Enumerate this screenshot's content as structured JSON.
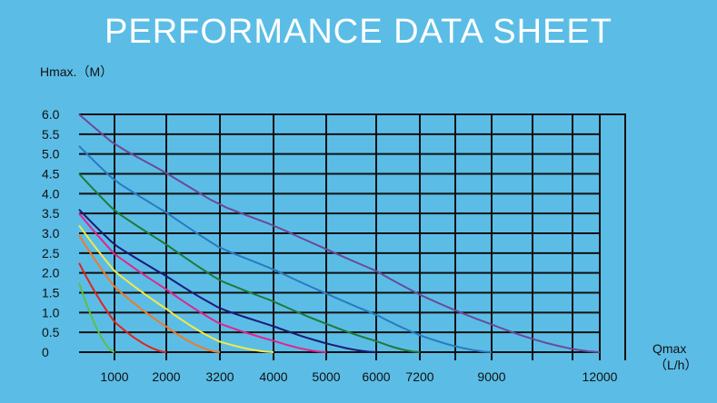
{
  "title": "PERFORMANCE DATA SHEET",
  "colors": {
    "background": "#5bbde6",
    "title": "#ffffff",
    "grid": "#111111"
  },
  "chart_data": {
    "type": "line",
    "title": "PERFORMANCE DATA SHEET",
    "ylabel": "Hmax.（M）",
    "xlabel_line1": "Qmax",
    "xlabel_line2": "（L/h）",
    "ylim": [
      0,
      6.0
    ],
    "yticks": [
      "6.0",
      "5.5",
      "5.0",
      "4.5",
      "4.0",
      "3.5",
      "3.0",
      "2.5",
      "2.0",
      "1.5",
      "1.0",
      "0.5",
      "0"
    ],
    "xticks": [
      "1000",
      "2000",
      "3200",
      "4000",
      "5000",
      "6000",
      "7200",
      "9000",
      "12000"
    ],
    "x_tick_positions": [
      1000,
      2000,
      3200,
      4000,
      5000,
      6000,
      7200,
      9000,
      12000
    ],
    "grid": true,
    "series": [
      {
        "color": "#5cc044",
        "max_flow": 1000,
        "max_head": 1.75
      },
      {
        "color": "#e0241f",
        "max_flow": 2000,
        "max_head": 2.25
      },
      {
        "color": "#f07a2a",
        "max_flow": 3200,
        "max_head": 2.95
      },
      {
        "color": "#f3e84a",
        "max_flow": 4000,
        "max_head": 3.2
      },
      {
        "color": "#e0258f",
        "max_flow": 5000,
        "max_head": 3.5
      },
      {
        "color": "#1a1a7a",
        "max_flow": 6000,
        "max_head": 3.6
      },
      {
        "color": "#1f7a3a",
        "max_flow": 7200,
        "max_head": 4.5
      },
      {
        "color": "#2a7ac2",
        "max_flow": 9000,
        "max_head": 5.2
      },
      {
        "color": "#6a4a9a",
        "max_flow": 12000,
        "max_head": 6.0
      }
    ]
  }
}
